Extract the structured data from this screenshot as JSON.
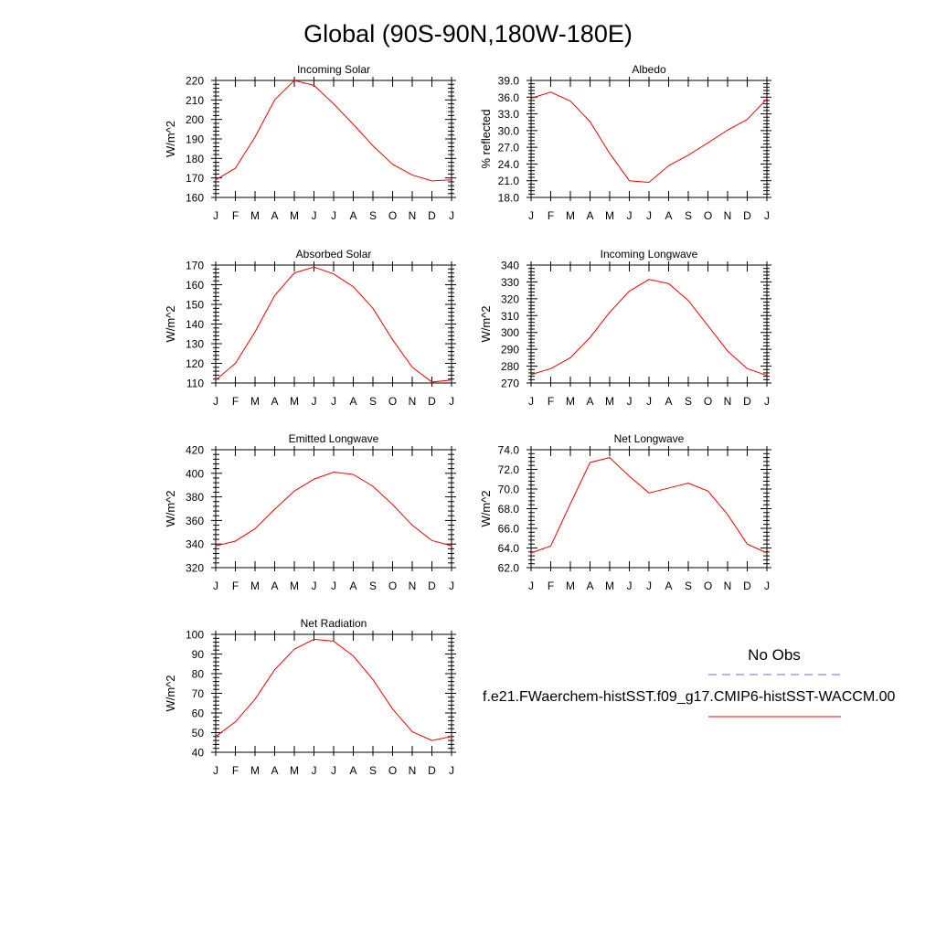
{
  "figure": {
    "title": "Global (90S-90N,180W-180E)"
  },
  "legend": {
    "obs_label": "No Obs",
    "obs_color": "#6b6bff",
    "model_label": "f.e21.FWaerchem-histSST.f09_g17.CMIP6-histSST-WACCM.00",
    "model_color": "#ff0000"
  },
  "chart_data": [
    {
      "type": "line",
      "title": "Incoming Solar",
      "ylabel": "W/m^2",
      "xlabel": "",
      "categories": [
        "J",
        "F",
        "M",
        "A",
        "M",
        "J",
        "J",
        "A",
        "S",
        "O",
        "N",
        "D",
        "J"
      ],
      "ylim": [
        160,
        220
      ],
      "yticks": [
        "160",
        "170",
        "180",
        "190",
        "200",
        "210",
        "220"
      ],
      "grid": false,
      "series": [
        {
          "color": "#ff0000",
          "values": [
            169,
            175,
            191,
            210,
            220,
            217.5,
            208,
            197.5,
            186.5,
            177,
            171.5,
            168.5,
            169
          ]
        }
      ]
    },
    {
      "type": "line",
      "title": "Albedo",
      "ylabel": "% reflected",
      "xlabel": "",
      "categories": [
        "J",
        "F",
        "M",
        "A",
        "M",
        "J",
        "J",
        "A",
        "S",
        "O",
        "N",
        "D",
        "J"
      ],
      "ylim": [
        18,
        39
      ],
      "yticks": [
        "18.0",
        "21.0",
        "24.0",
        "27.0",
        "30.0",
        "33.0",
        "36.0",
        "39.0"
      ],
      "grid": false,
      "series": [
        {
          "color": "#ff0000",
          "values": [
            35.8,
            36.9,
            35.3,
            31.6,
            25.9,
            21.0,
            20.7,
            23.7,
            25.6,
            27.8,
            30.1,
            32.0,
            35.7
          ]
        }
      ]
    },
    {
      "type": "line",
      "title": "Absorbed Solar",
      "ylabel": "W/m^2",
      "xlabel": "",
      "categories": [
        "J",
        "F",
        "M",
        "A",
        "M",
        "J",
        "J",
        "A",
        "S",
        "O",
        "N",
        "D",
        "J"
      ],
      "ylim": [
        110,
        170
      ],
      "yticks": [
        "110",
        "120",
        "130",
        "140",
        "150",
        "160",
        "170"
      ],
      "grid": false,
      "series": [
        {
          "color": "#ff0000",
          "values": [
            111.5,
            120,
            136,
            154.5,
            166,
            169,
            165.5,
            159,
            148,
            132,
            118,
            110.5,
            111.5
          ]
        }
      ]
    },
    {
      "type": "line",
      "title": "Incoming Longwave",
      "ylabel": "W/m^2",
      "xlabel": "",
      "categories": [
        "J",
        "F",
        "M",
        "A",
        "M",
        "J",
        "J",
        "A",
        "S",
        "O",
        "N",
        "D",
        "J"
      ],
      "ylim": [
        270,
        340
      ],
      "yticks": [
        "270",
        "280",
        "290",
        "300",
        "310",
        "320",
        "330",
        "340"
      ],
      "grid": false,
      "series": [
        {
          "color": "#ff0000",
          "values": [
            275,
            278.5,
            285,
            297,
            312,
            324.5,
            331.5,
            329,
            319,
            304,
            289,
            278.5,
            274.5
          ]
        }
      ]
    },
    {
      "type": "line",
      "title": "Emitted Longwave",
      "ylabel": "W/m^2",
      "xlabel": "",
      "categories": [
        "J",
        "F",
        "M",
        "A",
        "M",
        "J",
        "J",
        "A",
        "S",
        "O",
        "N",
        "D",
        "J"
      ],
      "ylim": [
        320,
        420
      ],
      "yticks": [
        "320",
        "340",
        "360",
        "380",
        "400",
        "420"
      ],
      "grid": false,
      "series": [
        {
          "color": "#ff0000",
          "values": [
            338.5,
            342.5,
            353,
            369.5,
            385,
            395,
            401,
            399,
            389,
            373.5,
            356,
            343,
            338.5
          ]
        }
      ]
    },
    {
      "type": "line",
      "title": "Net Longwave",
      "ylabel": "W/m^2",
      "xlabel": "",
      "categories": [
        "J",
        "F",
        "M",
        "A",
        "M",
        "J",
        "J",
        "A",
        "S",
        "O",
        "N",
        "D",
        "J"
      ],
      "ylim": [
        62,
        74
      ],
      "yticks": [
        "62.0",
        "64.0",
        "66.0",
        "68.0",
        "70.0",
        "72.0",
        "74.0"
      ],
      "grid": false,
      "series": [
        {
          "color": "#ff0000",
          "values": [
            63.5,
            64.2,
            68.5,
            72.7,
            73.2,
            71.3,
            69.6,
            70.1,
            70.6,
            69.8,
            67.4,
            64.4,
            63.5
          ]
        }
      ]
    },
    {
      "type": "line",
      "title": "Net Radiation",
      "ylabel": "W/m^2",
      "xlabel": "",
      "categories": [
        "J",
        "F",
        "M",
        "A",
        "M",
        "J",
        "J",
        "A",
        "S",
        "O",
        "N",
        "D",
        "J"
      ],
      "ylim": [
        40,
        100
      ],
      "yticks": [
        "40",
        "50",
        "60",
        "70",
        "80",
        "90",
        "100"
      ],
      "grid": false,
      "series": [
        {
          "color": "#ff0000",
          "values": [
            48,
            55.5,
            67,
            82,
            92.5,
            97.5,
            96.5,
            89,
            77,
            62,
            50.5,
            46,
            48
          ]
        }
      ]
    }
  ]
}
